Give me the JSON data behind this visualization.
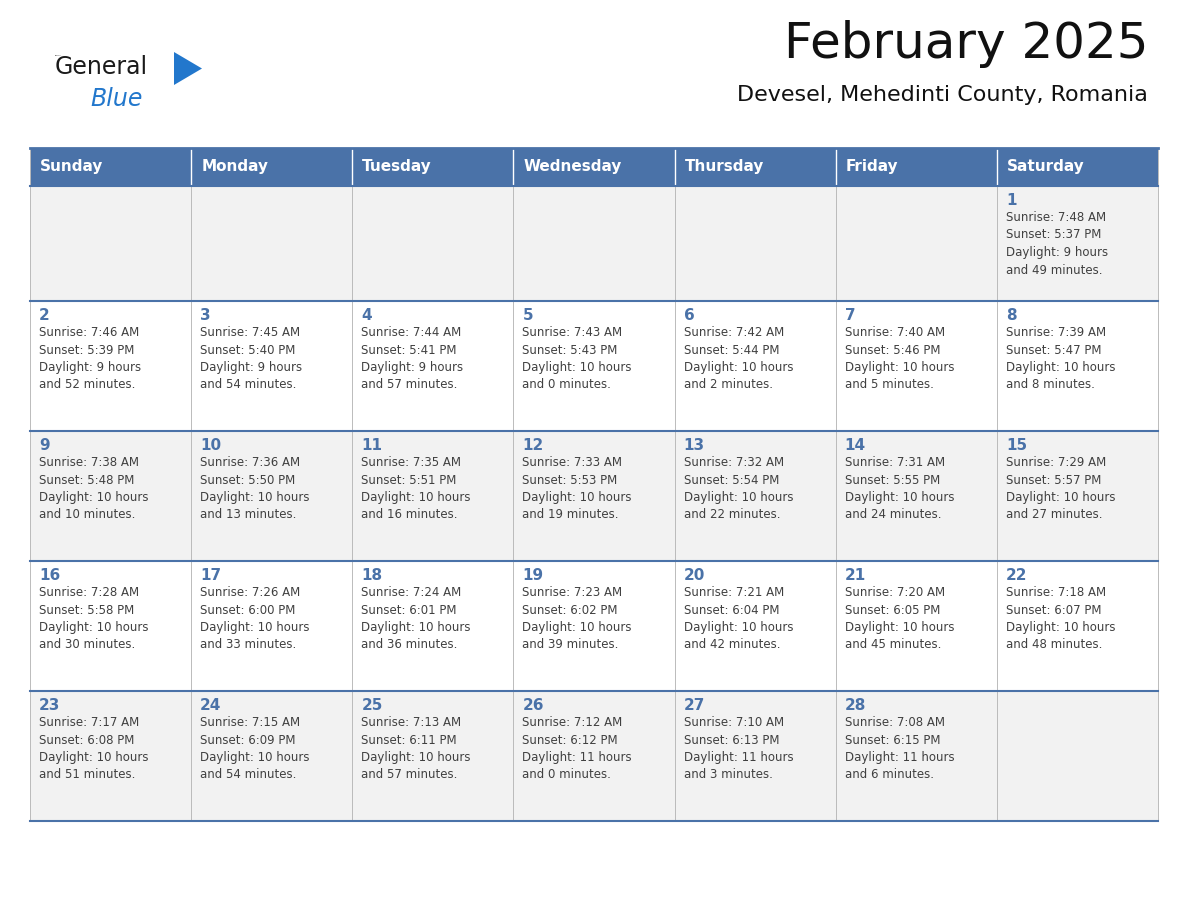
{
  "title": "February 2025",
  "subtitle": "Devesel, Mehedinti County, Romania",
  "header_bg": "#4A72A8",
  "header_text": "#FFFFFF",
  "row_bg_light": "#F2F2F2",
  "row_bg_white": "#FFFFFF",
  "cell_border_color": "#4A72A8",
  "day_text_color": "#4A72A8",
  "info_text_color": "#404040",
  "days_of_week": [
    "Sunday",
    "Monday",
    "Tuesday",
    "Wednesday",
    "Thursday",
    "Friday",
    "Saturday"
  ],
  "weeks": [
    [
      {
        "day": "",
        "info": ""
      },
      {
        "day": "",
        "info": ""
      },
      {
        "day": "",
        "info": ""
      },
      {
        "day": "",
        "info": ""
      },
      {
        "day": "",
        "info": ""
      },
      {
        "day": "",
        "info": ""
      },
      {
        "day": "1",
        "info": "Sunrise: 7:48 AM\nSunset: 5:37 PM\nDaylight: 9 hours\nand 49 minutes."
      }
    ],
    [
      {
        "day": "2",
        "info": "Sunrise: 7:46 AM\nSunset: 5:39 PM\nDaylight: 9 hours\nand 52 minutes."
      },
      {
        "day": "3",
        "info": "Sunrise: 7:45 AM\nSunset: 5:40 PM\nDaylight: 9 hours\nand 54 minutes."
      },
      {
        "day": "4",
        "info": "Sunrise: 7:44 AM\nSunset: 5:41 PM\nDaylight: 9 hours\nand 57 minutes."
      },
      {
        "day": "5",
        "info": "Sunrise: 7:43 AM\nSunset: 5:43 PM\nDaylight: 10 hours\nand 0 minutes."
      },
      {
        "day": "6",
        "info": "Sunrise: 7:42 AM\nSunset: 5:44 PM\nDaylight: 10 hours\nand 2 minutes."
      },
      {
        "day": "7",
        "info": "Sunrise: 7:40 AM\nSunset: 5:46 PM\nDaylight: 10 hours\nand 5 minutes."
      },
      {
        "day": "8",
        "info": "Sunrise: 7:39 AM\nSunset: 5:47 PM\nDaylight: 10 hours\nand 8 minutes."
      }
    ],
    [
      {
        "day": "9",
        "info": "Sunrise: 7:38 AM\nSunset: 5:48 PM\nDaylight: 10 hours\nand 10 minutes."
      },
      {
        "day": "10",
        "info": "Sunrise: 7:36 AM\nSunset: 5:50 PM\nDaylight: 10 hours\nand 13 minutes."
      },
      {
        "day": "11",
        "info": "Sunrise: 7:35 AM\nSunset: 5:51 PM\nDaylight: 10 hours\nand 16 minutes."
      },
      {
        "day": "12",
        "info": "Sunrise: 7:33 AM\nSunset: 5:53 PM\nDaylight: 10 hours\nand 19 minutes."
      },
      {
        "day": "13",
        "info": "Sunrise: 7:32 AM\nSunset: 5:54 PM\nDaylight: 10 hours\nand 22 minutes."
      },
      {
        "day": "14",
        "info": "Sunrise: 7:31 AM\nSunset: 5:55 PM\nDaylight: 10 hours\nand 24 minutes."
      },
      {
        "day": "15",
        "info": "Sunrise: 7:29 AM\nSunset: 5:57 PM\nDaylight: 10 hours\nand 27 minutes."
      }
    ],
    [
      {
        "day": "16",
        "info": "Sunrise: 7:28 AM\nSunset: 5:58 PM\nDaylight: 10 hours\nand 30 minutes."
      },
      {
        "day": "17",
        "info": "Sunrise: 7:26 AM\nSunset: 6:00 PM\nDaylight: 10 hours\nand 33 minutes."
      },
      {
        "day": "18",
        "info": "Sunrise: 7:24 AM\nSunset: 6:01 PM\nDaylight: 10 hours\nand 36 minutes."
      },
      {
        "day": "19",
        "info": "Sunrise: 7:23 AM\nSunset: 6:02 PM\nDaylight: 10 hours\nand 39 minutes."
      },
      {
        "day": "20",
        "info": "Sunrise: 7:21 AM\nSunset: 6:04 PM\nDaylight: 10 hours\nand 42 minutes."
      },
      {
        "day": "21",
        "info": "Sunrise: 7:20 AM\nSunset: 6:05 PM\nDaylight: 10 hours\nand 45 minutes."
      },
      {
        "day": "22",
        "info": "Sunrise: 7:18 AM\nSunset: 6:07 PM\nDaylight: 10 hours\nand 48 minutes."
      }
    ],
    [
      {
        "day": "23",
        "info": "Sunrise: 7:17 AM\nSunset: 6:08 PM\nDaylight: 10 hours\nand 51 minutes."
      },
      {
        "day": "24",
        "info": "Sunrise: 7:15 AM\nSunset: 6:09 PM\nDaylight: 10 hours\nand 54 minutes."
      },
      {
        "day": "25",
        "info": "Sunrise: 7:13 AM\nSunset: 6:11 PM\nDaylight: 10 hours\nand 57 minutes."
      },
      {
        "day": "26",
        "info": "Sunrise: 7:12 AM\nSunset: 6:12 PM\nDaylight: 11 hours\nand 0 minutes."
      },
      {
        "day": "27",
        "info": "Sunrise: 7:10 AM\nSunset: 6:13 PM\nDaylight: 11 hours\nand 3 minutes."
      },
      {
        "day": "28",
        "info": "Sunrise: 7:08 AM\nSunset: 6:15 PM\nDaylight: 11 hours\nand 6 minutes."
      },
      {
        "day": "",
        "info": ""
      }
    ]
  ],
  "logo_color_general": "#1a1a1a",
  "logo_color_blue": "#2277CC",
  "logo_triangle_color": "#2277CC",
  "title_fontsize": 36,
  "subtitle_fontsize": 16,
  "header_fontsize": 11,
  "day_fontsize": 11,
  "info_fontsize": 8.5
}
